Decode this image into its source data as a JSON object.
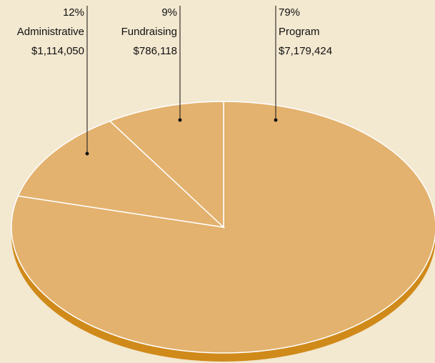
{
  "chart_data": {
    "type": "pie",
    "categories": [
      "Administrative",
      "Fundraising",
      "Program"
    ],
    "values": [
      12,
      9,
      79
    ],
    "value_labels": [
      "12%",
      "9%",
      "79%"
    ],
    "amounts": [
      1114050,
      786118,
      7179424
    ],
    "amount_labels": [
      "$1,114,050",
      "$786,118",
      "$7,179,424"
    ],
    "color": "#e3b26e",
    "edge_color": "#d08a1a"
  }
}
